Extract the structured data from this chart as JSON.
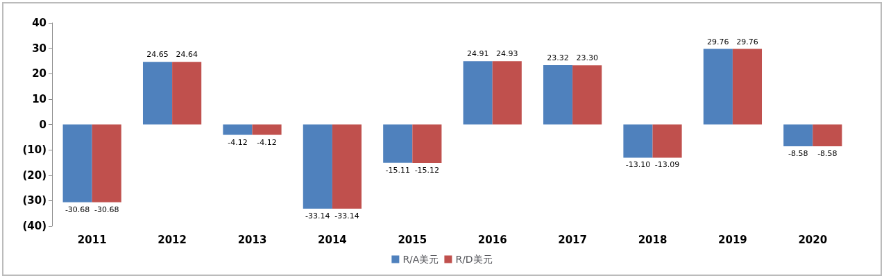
{
  "chart_data": {
    "type": "bar",
    "categories": [
      "2011",
      "2012",
      "2013",
      "2014",
      "2015",
      "2016",
      "2017",
      "2018",
      "2019",
      "2020"
    ],
    "series": [
      {
        "name": "R/A美元",
        "color": "#4f81bd",
        "values": [
          -30.68,
          24.65,
          -4.12,
          -33.14,
          -15.11,
          24.91,
          23.32,
          -13.1,
          29.76,
          -8.58
        ],
        "value_labels": [
          "-30.68",
          "24.65",
          "-4.12",
          "-33.14",
          "-15.11",
          "24.91",
          "23.32",
          "-13.10",
          "29.76",
          "-8.58"
        ]
      },
      {
        "name": "R/D美元",
        "color": "#c0504d",
        "values": [
          -30.68,
          24.64,
          -4.12,
          -33.14,
          -15.12,
          24.93,
          23.3,
          -13.09,
          29.76,
          -8.58
        ],
        "value_labels": [
          "-30.68",
          "24.64",
          "-4.12",
          "-33.14",
          "-15.12",
          "24.93",
          "23.30",
          "-13.09",
          "29.76",
          "-8.58"
        ]
      }
    ],
    "ylim": [
      -40,
      40
    ],
    "yticks": [
      40,
      30,
      20,
      10,
      0,
      {
        "value": -10,
        "label": "(10)"
      },
      {
        "value": -20,
        "label": "(20)"
      },
      {
        "value": -30,
        "label": "(30)"
      },
      {
        "value": -40,
        "label": "(40)"
      }
    ],
    "grid": false,
    "legend": "bottom"
  }
}
